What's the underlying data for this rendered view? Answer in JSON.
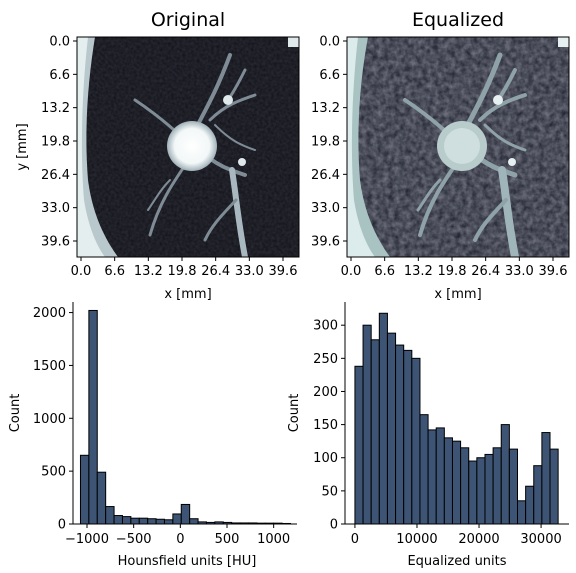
{
  "colors": {
    "bar_fill": "#3d5474",
    "bar_edge": "#000000",
    "image_cmap": "bone"
  },
  "chart_data": [
    {
      "type": "heatmap",
      "title": "Original",
      "xlabel": "x [mm]",
      "ylabel": "y [mm]",
      "xticks": [
        "0.0",
        "6.6",
        "13.2",
        "19.8",
        "26.4",
        "33.0",
        "39.6"
      ],
      "yticks": [
        "0.0",
        "6.6",
        "13.2",
        "19.8",
        "26.4",
        "33.0",
        "39.6"
      ],
      "xlim": [
        0,
        42
      ],
      "ylim": [
        0,
        42
      ],
      "colormap": "bone",
      "description_units": "mm"
    },
    {
      "type": "heatmap",
      "title": "Equalized",
      "xlabel": "x [mm]",
      "ylabel": "",
      "xticks": [
        "0.0",
        "6.6",
        "13.2",
        "19.8",
        "26.4",
        "33.0",
        "39.6"
      ],
      "yticks": [
        "0.0",
        "6.6",
        "13.2",
        "19.8",
        "26.4",
        "33.0",
        "39.6"
      ],
      "xlim": [
        0,
        42
      ],
      "ylim": [
        0,
        42
      ],
      "colormap": "bone"
    },
    {
      "type": "bar",
      "title": "",
      "xlabel": "Hounsfield units [HU]",
      "ylabel": "Count",
      "xlim": [
        -1150,
        1250
      ],
      "ylim": [
        0,
        2100
      ],
      "xticks": [
        -1000,
        -500,
        0,
        500,
        1000
      ],
      "xticklabels": [
        "−1000",
        "−500",
        "0",
        "500",
        "1000"
      ],
      "yticks": [
        0,
        500,
        1000,
        1500,
        2000
      ],
      "bin_width": 90,
      "bin_starts": [
        -1070,
        -980,
        -890,
        -800,
        -710,
        -620,
        -530,
        -440,
        -350,
        -260,
        -170,
        -80,
        10,
        100,
        190,
        280,
        370,
        460,
        550,
        640,
        730,
        820,
        910,
        1000,
        1090
      ],
      "values": [
        650,
        2020,
        490,
        165,
        80,
        70,
        55,
        55,
        50,
        45,
        40,
        95,
        185,
        50,
        20,
        15,
        20,
        15,
        10,
        10,
        10,
        8,
        8,
        8,
        5
      ]
    },
    {
      "type": "bar",
      "title": "",
      "xlabel": "Equalized units",
      "ylabel": "Count",
      "xlim": [
        -1600,
        34500
      ],
      "ylim": [
        0,
        335
      ],
      "xticks": [
        0,
        10000,
        20000,
        30000
      ],
      "xticklabels": [
        "0",
        "10000",
        "20000",
        "30000"
      ],
      "yticks": [
        0,
        50,
        100,
        150,
        200,
        250,
        300
      ],
      "bin_width": 1310,
      "bin_starts": [
        0,
        1310,
        2620,
        3930,
        5240,
        6550,
        7860,
        9170,
        10480,
        11790,
        13100,
        14410,
        15720,
        17030,
        18340,
        19650,
        20960,
        22270,
        23580,
        24890,
        26200,
        27510,
        28820,
        30130,
        31440
      ],
      "values": [
        238,
        300,
        278,
        318,
        288,
        270,
        262,
        250,
        165,
        142,
        145,
        130,
        125,
        115,
        95,
        100,
        105,
        115,
        150,
        113,
        35,
        57,
        88,
        138,
        113
      ]
    }
  ]
}
